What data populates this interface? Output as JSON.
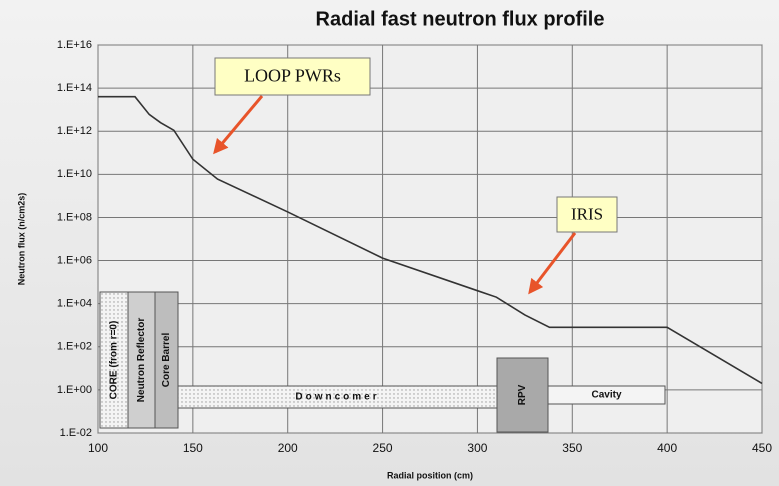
{
  "chart_data": {
    "type": "line",
    "title": "Radial fast neutron flux profile",
    "x_label": "Radial position (cm)",
    "y_label": "Neutron flux (n/cm2s)",
    "x": [
      100,
      110,
      119.5,
      127,
      133,
      140,
      150,
      163,
      200,
      250,
      300,
      310,
      325,
      338,
      400,
      450
    ],
    "series": [
      {
        "color": "#333333",
        "values": [
          40000000000000.0,
          40000000000000.0,
          40000000000000.0,
          6000000000000.0,
          2500000000000.0,
          1100000000000.0,
          50000000000.0,
          6000000000.0,
          180000000.0,
          1300000.0,
          40000.0,
          20000.0,
          3000.0,
          800.0,
          800.0,
          2
        ]
      }
    ],
    "xlim": [
      100,
      450
    ],
    "xticks": [
      100,
      150,
      200,
      250,
      300,
      350,
      400,
      450
    ],
    "ylim": [
      0.01,
      1e+16
    ],
    "log_y": true,
    "grid": true,
    "yticks": [
      {
        "value": 0.01,
        "label": "1.E-02"
      },
      {
        "value": 1,
        "label": "1.E+00"
      },
      {
        "value": 100,
        "label": "1.E+02"
      },
      {
        "value": 10000,
        "label": "1.E+04"
      },
      {
        "value": 1000000,
        "label": "1.E+06"
      },
      {
        "value": 100000000,
        "label": "1.E+08"
      },
      {
        "value": 10000000000,
        "label": "1.E+10"
      },
      {
        "value": 1000000000000,
        "label": "1.E+12"
      },
      {
        "value": 100000000000000,
        "label": "1.E+14"
      },
      {
        "value": 10000000000000000,
        "label": "1.E+16"
      }
    ],
    "annotations": [
      "LOOP PWRs",
      "IRIS"
    ],
    "regions": [
      "CORE (from r=0)",
      "Neutron Reflector",
      "Core Barrel",
      "Downcomer",
      "RPV",
      "Cavity"
    ]
  }
}
